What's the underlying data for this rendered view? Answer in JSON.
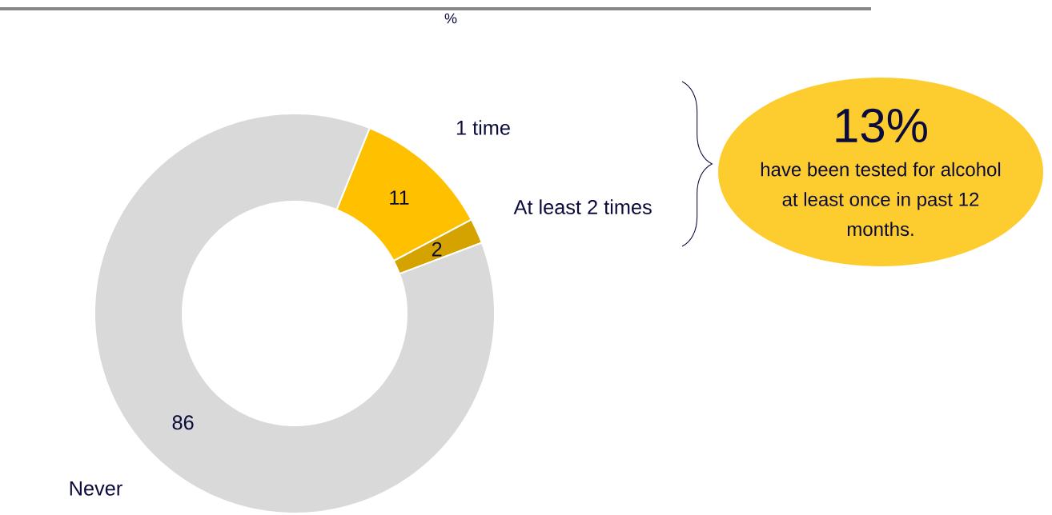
{
  "chart_data": {
    "type": "donut",
    "title": "%",
    "categories": [
      "1 time",
      "At least 2 times",
      "Never"
    ],
    "values": [
      11,
      2,
      86
    ],
    "colors": [
      "#ffc000",
      "#d4a300",
      "#d9d9d9"
    ],
    "data_labels": true,
    "annotations": [
      "13%",
      "have been tested for alcohol at least once in past 12 months."
    ]
  }
}
